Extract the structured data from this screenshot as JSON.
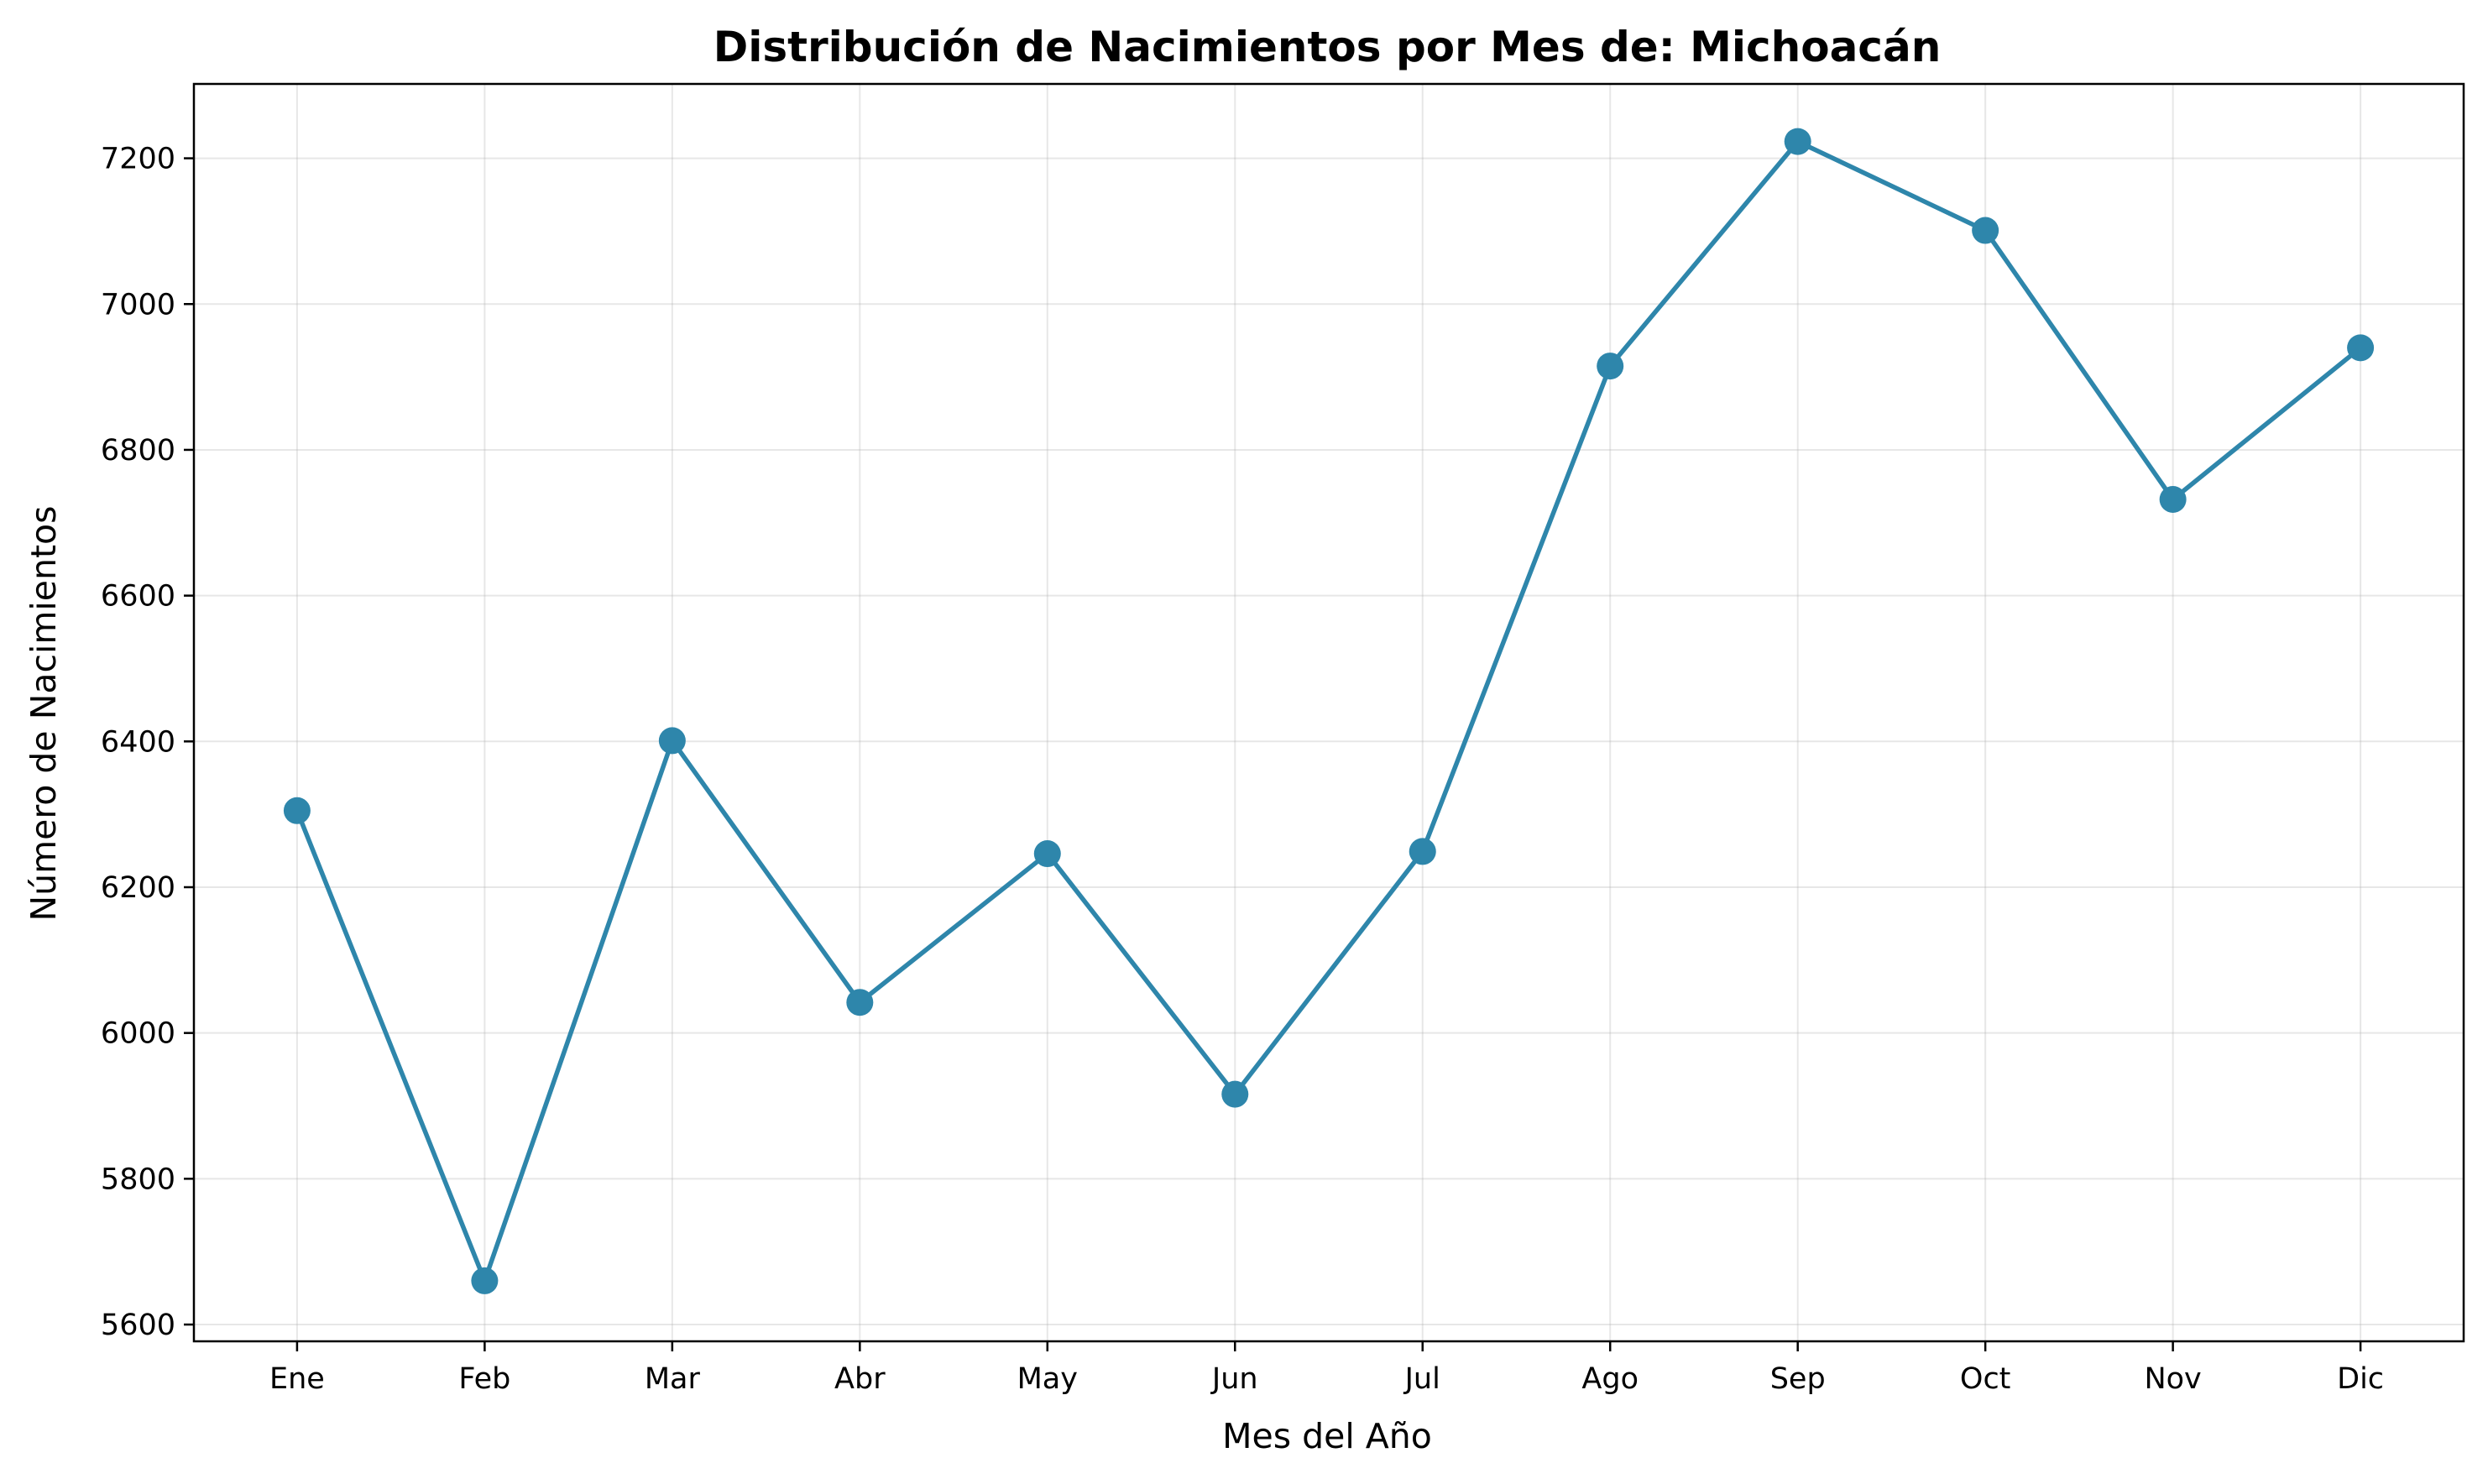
{
  "chart_data": {
    "type": "line",
    "title": "Distribución de Nacimientos por Mes de: Michoacán",
    "xlabel": "Mes del Año",
    "ylabel": "Número de Nacimientos",
    "categories": [
      "Ene",
      "Feb",
      "Mar",
      "Abr",
      "May",
      "Jun",
      "Jul",
      "Ago",
      "Sep",
      "Oct",
      "Nov",
      "Dic"
    ],
    "series": [
      {
        "values": [
          6305,
          5660,
          6401,
          6042,
          6246,
          5916,
          6249,
          6915,
          7223,
          7101,
          6732,
          6940
        ],
        "color": "#2e86ab",
        "marker": "circle"
      }
    ],
    "ylim": [
      5577,
      7302
    ],
    "yticks": [
      5600,
      5800,
      6000,
      6200,
      6400,
      6600,
      6800,
      7000,
      7200
    ],
    "grid": true,
    "legend": "none"
  }
}
